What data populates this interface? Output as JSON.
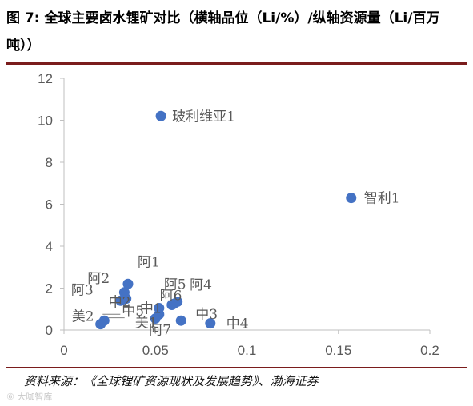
{
  "title": "图 7: 全球主要卤水锂矿对比（横轴品位（Li/%）/纵轴资源量（Li/百万吨））",
  "source": "资料来源：《全球锂矿资源现状及发展趋势》、渤海证券",
  "watermark": "⑥ 大咖智库",
  "chart_data": {
    "type": "scatter",
    "title": "",
    "xlabel": "",
    "ylabel": "",
    "xlim": [
      0,
      0.2
    ],
    "ylim": [
      0,
      12
    ],
    "xticks": [
      0,
      0.05,
      0.1,
      0.15,
      0.2
    ],
    "yticks": [
      0,
      2,
      4,
      6,
      8,
      10,
      12
    ],
    "xtick_labels": [
      "0",
      "0.05",
      "0.1",
      "0.15",
      "0.2"
    ],
    "ytick_labels": [
      "0",
      "2",
      "4",
      "6",
      "8",
      "10",
      "12"
    ],
    "grid": false,
    "color": "#4472C4",
    "points": [
      {
        "label": "玻利维亚1",
        "x": 0.053,
        "y": 10.2
      },
      {
        "label": "智利1",
        "x": 0.157,
        "y": 6.3
      },
      {
        "label": "阿1",
        "x": 0.035,
        "y": 2.2
      },
      {
        "label": "阿2",
        "x": 0.033,
        "y": 1.8
      },
      {
        "label": "阿3",
        "x": 0.031,
        "y": 1.4
      },
      {
        "label": "中2",
        "x": 0.034,
        "y": 1.5
      },
      {
        "label": "中1",
        "x": 0.052,
        "y": 1.05
      },
      {
        "label": "阿5",
        "x": 0.059,
        "y": 1.2
      },
      {
        "label": "阿6",
        "x": 0.062,
        "y": 1.35
      },
      {
        "label": "阿4",
        "x": 0.06,
        "y": 1.25
      },
      {
        "label": "中3",
        "x": 0.064,
        "y": 0.45
      },
      {
        "label": "中4",
        "x": 0.08,
        "y": 0.32
      },
      {
        "label": "美1",
        "x": 0.052,
        "y": 0.75
      },
      {
        "label": "阿7",
        "x": 0.05,
        "y": 0.55
      },
      {
        "label": "中5",
        "x": 0.022,
        "y": 0.45
      },
      {
        "label": "美2",
        "x": 0.02,
        "y": 0.28
      }
    ]
  }
}
